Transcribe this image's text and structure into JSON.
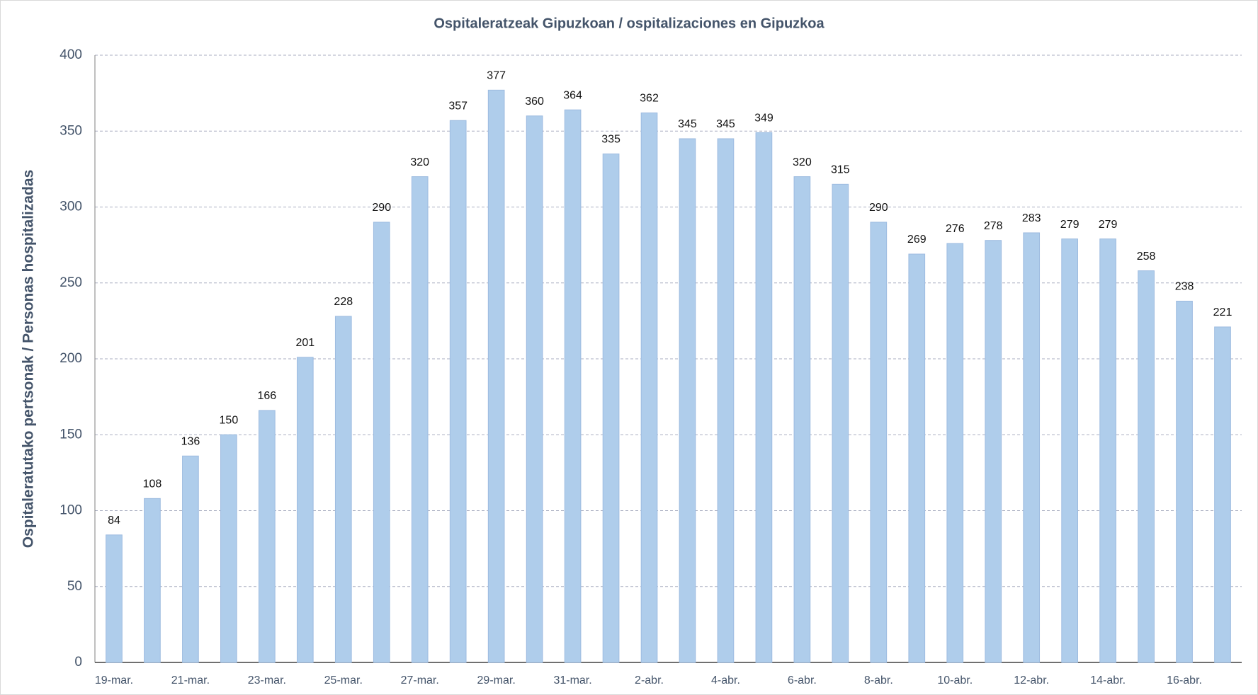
{
  "chart_data": {
    "type": "bar",
    "title": "Ospitaleratzeak Gipuzkoan / ospitalizaciones en Gipuzkoa",
    "y_label": "Ospitaleratutako pertsonak / Personas hospitalizadas",
    "categories": [
      "19-mar.",
      null,
      "21-mar.",
      null,
      "23-mar.",
      null,
      "25-mar.",
      null,
      "27-mar.",
      null,
      "29-mar.",
      null,
      "31-mar.",
      null,
      "2-abr.",
      null,
      "4-abr.",
      null,
      "6-abr.",
      null,
      "8-abr.",
      null,
      "10-abr.",
      null,
      "12-abr.",
      null,
      "14-abr.",
      null,
      "16-abr.",
      null
    ],
    "values": [
      84,
      108,
      136,
      150,
      166,
      201,
      228,
      290,
      320,
      357,
      377,
      360,
      364,
      335,
      362,
      345,
      345,
      349,
      320,
      315,
      290,
      269,
      276,
      278,
      283,
      279,
      279,
      258,
      238,
      221
    ],
    "color": "#afcdeb",
    "ylim": [
      0,
      400
    ],
    "yticks": [
      0,
      50,
      100,
      150,
      200,
      250,
      300,
      350,
      400
    ],
    "grid": true
  }
}
